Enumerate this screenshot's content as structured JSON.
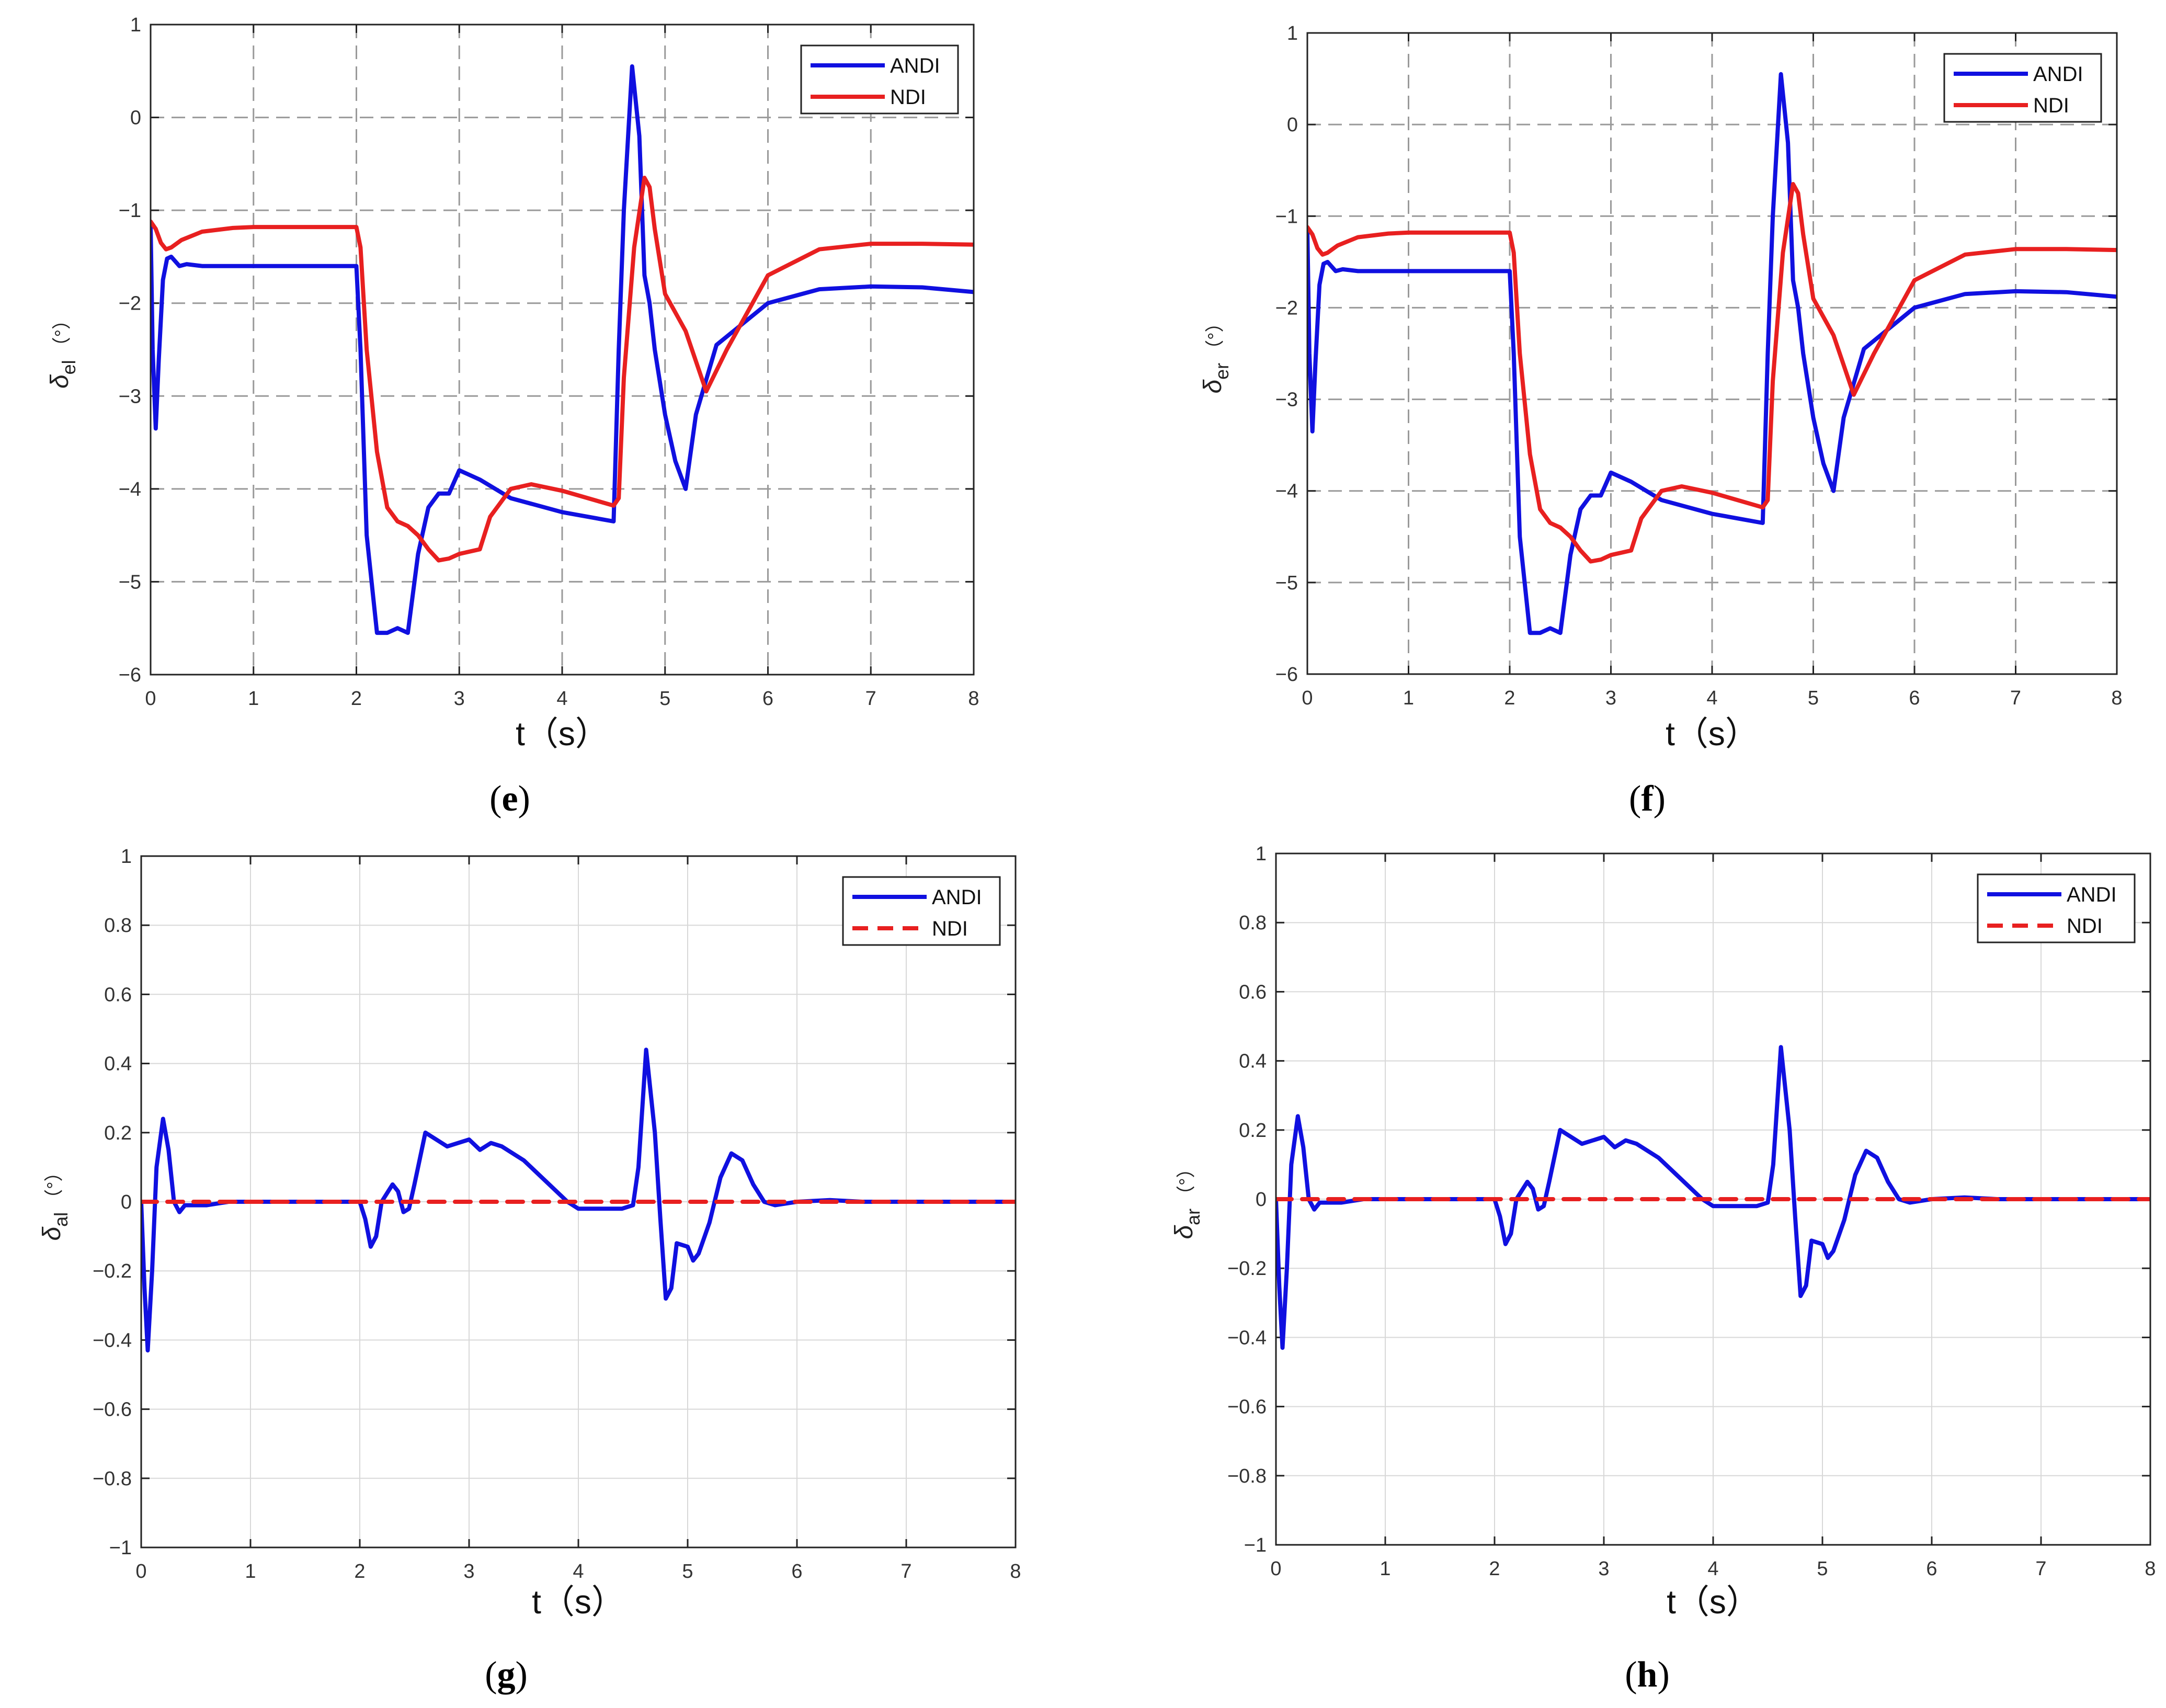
{
  "colors": {
    "andi": "#1010e0",
    "ndi": "#e82020",
    "axis": "#222222",
    "grid": "#9a9a9a",
    "grid_light": "#d8d8d8"
  },
  "chart_data": [
    {
      "id": "e",
      "type": "line",
      "caption": "e",
      "xlabel": "t（s）",
      "ylabel": "δ",
      "ylabel_sub": "el",
      "ylabel_unit": "（°）",
      "xlim": [
        0,
        8
      ],
      "ylim": [
        -6,
        1
      ],
      "xticks": [
        0,
        1,
        2,
        3,
        4,
        5,
        6,
        7,
        8
      ],
      "yticks": [
        -6,
        -5,
        -4,
        -3,
        -2,
        -1,
        0,
        1
      ],
      "grid": "dashed",
      "legend": "top-right",
      "series": [
        {
          "name": "ANDI",
          "style": "solid",
          "x": [
            0,
            0.02,
            0.05,
            0.08,
            0.12,
            0.16,
            0.2,
            0.28,
            0.35,
            0.5,
            1.0,
            1.5,
            2.0,
            2.04,
            2.1,
            2.2,
            2.3,
            2.4,
            2.5,
            2.6,
            2.7,
            2.8,
            2.9,
            3.0,
            3.2,
            3.5,
            4.0,
            4.5,
            4.55,
            4.6,
            4.68,
            4.75,
            4.8,
            4.85,
            4.9,
            5.0,
            5.1,
            5.2,
            5.3,
            5.5,
            6.0,
            6.5,
            7.0,
            7.5,
            8.0
          ],
          "y": [
            -1.15,
            -2.5,
            -3.35,
            -2.6,
            -1.75,
            -1.52,
            -1.5,
            -1.6,
            -1.58,
            -1.6,
            -1.6,
            -1.6,
            -1.6,
            -2.5,
            -4.5,
            -5.55,
            -5.55,
            -5.5,
            -5.55,
            -4.7,
            -4.2,
            -4.05,
            -4.05,
            -3.8,
            -3.9,
            -4.1,
            -4.25,
            -4.35,
            -2.5,
            -1.0,
            0.55,
            -0.2,
            -1.7,
            -2.0,
            -2.5,
            -3.2,
            -3.7,
            -4.0,
            -3.2,
            -2.45,
            -2.0,
            -1.85,
            -1.82,
            -1.83,
            -1.88
          ]
        },
        {
          "name": "NDI",
          "style": "solid",
          "x": [
            0,
            0.05,
            0.1,
            0.15,
            0.2,
            0.3,
            0.5,
            0.8,
            1.0,
            1.5,
            2.0,
            2.04,
            2.1,
            2.2,
            2.3,
            2.4,
            2.5,
            2.6,
            2.7,
            2.8,
            2.9,
            3.0,
            3.2,
            3.3,
            3.5,
            3.7,
            4.0,
            4.5,
            4.55,
            4.6,
            4.7,
            4.8,
            4.85,
            4.9,
            5.0,
            5.2,
            5.4,
            5.6,
            6.0,
            6.5,
            7.0,
            7.5,
            8.0
          ],
          "y": [
            -1.12,
            -1.2,
            -1.35,
            -1.42,
            -1.4,
            -1.32,
            -1.23,
            -1.19,
            -1.18,
            -1.18,
            -1.18,
            -1.4,
            -2.5,
            -3.6,
            -4.2,
            -4.35,
            -4.4,
            -4.5,
            -4.65,
            -4.77,
            -4.75,
            -4.7,
            -4.65,
            -4.3,
            -4.0,
            -3.95,
            -4.02,
            -4.18,
            -4.1,
            -2.8,
            -1.4,
            -0.65,
            -0.75,
            -1.2,
            -1.9,
            -2.3,
            -2.95,
            -2.5,
            -1.7,
            -1.42,
            -1.36,
            -1.36,
            -1.37
          ]
        }
      ]
    },
    {
      "id": "f",
      "type": "line",
      "caption": "f",
      "xlabel": "t（s）",
      "ylabel": "δ",
      "ylabel_sub": "er",
      "ylabel_unit": "（°）",
      "xlim": [
        0,
        8
      ],
      "ylim": [
        -6,
        1
      ],
      "xticks": [
        0,
        1,
        2,
        3,
        4,
        5,
        6,
        7,
        8
      ],
      "yticks": [
        -6,
        -5,
        -4,
        -3,
        -2,
        -1,
        0,
        1
      ],
      "grid": "dashed",
      "legend": "top-right",
      "series": [
        {
          "name": "ANDI",
          "style": "solid",
          "x": [
            0,
            0.02,
            0.05,
            0.08,
            0.12,
            0.16,
            0.2,
            0.28,
            0.35,
            0.5,
            1.0,
            1.5,
            2.0,
            2.04,
            2.1,
            2.2,
            2.3,
            2.4,
            2.5,
            2.6,
            2.7,
            2.8,
            2.9,
            3.0,
            3.2,
            3.5,
            4.0,
            4.5,
            4.55,
            4.6,
            4.68,
            4.75,
            4.8,
            4.85,
            4.9,
            5.0,
            5.1,
            5.2,
            5.3,
            5.5,
            6.0,
            6.5,
            7.0,
            7.5,
            8.0
          ],
          "y": [
            -1.15,
            -2.5,
            -3.35,
            -2.6,
            -1.75,
            -1.52,
            -1.5,
            -1.6,
            -1.58,
            -1.6,
            -1.6,
            -1.6,
            -1.6,
            -2.5,
            -4.5,
            -5.55,
            -5.55,
            -5.5,
            -5.55,
            -4.7,
            -4.2,
            -4.05,
            -4.05,
            -3.8,
            -3.9,
            -4.1,
            -4.25,
            -4.35,
            -2.5,
            -1.0,
            0.55,
            -0.2,
            -1.7,
            -2.0,
            -2.5,
            -3.2,
            -3.7,
            -4.0,
            -3.2,
            -2.45,
            -2.0,
            -1.85,
            -1.82,
            -1.83,
            -1.88
          ]
        },
        {
          "name": "NDI",
          "style": "solid",
          "x": [
            0,
            0.05,
            0.1,
            0.15,
            0.2,
            0.3,
            0.5,
            0.8,
            1.0,
            1.5,
            2.0,
            2.04,
            2.1,
            2.2,
            2.3,
            2.4,
            2.5,
            2.6,
            2.7,
            2.8,
            2.9,
            3.0,
            3.2,
            3.3,
            3.5,
            3.7,
            4.0,
            4.5,
            4.55,
            4.6,
            4.7,
            4.8,
            4.85,
            4.9,
            5.0,
            5.2,
            5.4,
            5.6,
            6.0,
            6.5,
            7.0,
            7.5,
            8.0
          ],
          "y": [
            -1.12,
            -1.2,
            -1.35,
            -1.42,
            -1.4,
            -1.32,
            -1.23,
            -1.19,
            -1.18,
            -1.18,
            -1.18,
            -1.4,
            -2.5,
            -3.6,
            -4.2,
            -4.35,
            -4.4,
            -4.5,
            -4.65,
            -4.77,
            -4.75,
            -4.7,
            -4.65,
            -4.3,
            -4.0,
            -3.95,
            -4.02,
            -4.18,
            -4.1,
            -2.8,
            -1.4,
            -0.65,
            -0.75,
            -1.2,
            -1.9,
            -2.3,
            -2.95,
            -2.5,
            -1.7,
            -1.42,
            -1.36,
            -1.36,
            -1.37
          ]
        }
      ]
    },
    {
      "id": "g",
      "type": "line",
      "caption": "g",
      "xlabel": "t（s）",
      "ylabel": "δ",
      "ylabel_sub": "al",
      "ylabel_unit": "（°）",
      "xlim": [
        0,
        8
      ],
      "ylim": [
        -1,
        1
      ],
      "xticks": [
        0,
        1,
        2,
        3,
        4,
        5,
        6,
        7,
        8
      ],
      "yticks": [
        -1,
        -0.8,
        -0.6,
        -0.4,
        -0.2,
        0,
        0.2,
        0.4,
        0.6,
        0.8,
        1
      ],
      "grid": "solid",
      "legend": "top-right",
      "series": [
        {
          "name": "ANDI",
          "style": "solid",
          "x": [
            0,
            0.03,
            0.06,
            0.1,
            0.14,
            0.2,
            0.25,
            0.3,
            0.35,
            0.4,
            0.5,
            0.6,
            0.8,
            1.0,
            1.5,
            2.0,
            2.05,
            2.1,
            2.15,
            2.2,
            2.3,
            2.35,
            2.4,
            2.45,
            2.5,
            2.6,
            2.7,
            2.8,
            2.9,
            3.0,
            3.1,
            3.2,
            3.3,
            3.5,
            3.7,
            3.9,
            4.0,
            4.2,
            4.4,
            4.5,
            4.55,
            4.62,
            4.7,
            4.75,
            4.8,
            4.85,
            4.9,
            5.0,
            5.05,
            5.1,
            5.2,
            5.3,
            5.4,
            5.5,
            5.6,
            5.7,
            5.8,
            6.0,
            6.3,
            6.6,
            7.0,
            7.5,
            8.0
          ],
          "y": [
            0,
            -0.25,
            -0.43,
            -0.2,
            0.1,
            0.24,
            0.15,
            0.0,
            -0.03,
            -0.01,
            -0.01,
            -0.01,
            0.0,
            0.0,
            0.0,
            0.0,
            -0.05,
            -0.13,
            -0.1,
            0.0,
            0.05,
            0.03,
            -0.03,
            -0.02,
            0.05,
            0.2,
            0.18,
            0.16,
            0.17,
            0.18,
            0.15,
            0.17,
            0.16,
            0.12,
            0.06,
            0.0,
            -0.02,
            -0.02,
            -0.02,
            -0.01,
            0.1,
            0.44,
            0.2,
            -0.05,
            -0.28,
            -0.25,
            -0.12,
            -0.13,
            -0.17,
            -0.15,
            -0.06,
            0.07,
            0.14,
            0.12,
            0.05,
            0.0,
            -0.01,
            0.0,
            0.005,
            0.0,
            0.0,
            0.0,
            0.0
          ]
        },
        {
          "name": "NDI",
          "style": "dashed",
          "x": [
            0,
            8
          ],
          "y": [
            0,
            0
          ]
        }
      ]
    },
    {
      "id": "h",
      "type": "line",
      "caption": "h",
      "xlabel": "t（s）",
      "ylabel": "δ",
      "ylabel_sub": "ar",
      "ylabel_unit": "（°）",
      "xlim": [
        0,
        8
      ],
      "ylim": [
        -1,
        1
      ],
      "xticks": [
        0,
        1,
        2,
        3,
        4,
        5,
        6,
        7,
        8
      ],
      "yticks": [
        -1,
        -0.8,
        -0.6,
        -0.4,
        -0.2,
        0,
        0.2,
        0.4,
        0.6,
        0.8,
        1
      ],
      "grid": "solid",
      "legend": "top-right",
      "series": [
        {
          "name": "ANDI",
          "style": "solid",
          "x": [
            0,
            0.03,
            0.06,
            0.1,
            0.14,
            0.2,
            0.25,
            0.3,
            0.35,
            0.4,
            0.5,
            0.6,
            0.8,
            1.0,
            1.5,
            2.0,
            2.05,
            2.1,
            2.15,
            2.2,
            2.3,
            2.35,
            2.4,
            2.45,
            2.5,
            2.6,
            2.7,
            2.8,
            2.9,
            3.0,
            3.1,
            3.2,
            3.3,
            3.5,
            3.7,
            3.9,
            4.0,
            4.2,
            4.4,
            4.5,
            4.55,
            4.62,
            4.7,
            4.75,
            4.8,
            4.85,
            4.9,
            5.0,
            5.05,
            5.1,
            5.2,
            5.3,
            5.4,
            5.5,
            5.6,
            5.7,
            5.8,
            6.0,
            6.3,
            6.6,
            7.0,
            7.5,
            8.0
          ],
          "y": [
            0,
            -0.25,
            -0.43,
            -0.2,
            0.1,
            0.24,
            0.15,
            0.0,
            -0.03,
            -0.01,
            -0.01,
            -0.01,
            0.0,
            0.0,
            0.0,
            0.0,
            -0.05,
            -0.13,
            -0.1,
            0.0,
            0.05,
            0.03,
            -0.03,
            -0.02,
            0.05,
            0.2,
            0.18,
            0.16,
            0.17,
            0.18,
            0.15,
            0.17,
            0.16,
            0.12,
            0.06,
            0.0,
            -0.02,
            -0.02,
            -0.02,
            -0.01,
            0.1,
            0.44,
            0.2,
            -0.05,
            -0.28,
            -0.25,
            -0.12,
            -0.13,
            -0.17,
            -0.15,
            -0.06,
            0.07,
            0.14,
            0.12,
            0.05,
            0.0,
            -0.01,
            0.0,
            0.005,
            0.0,
            0.0,
            0.0,
            0.0
          ]
        },
        {
          "name": "NDI",
          "style": "dashed",
          "x": [
            0,
            8
          ],
          "y": [
            0,
            0
          ]
        }
      ]
    }
  ]
}
